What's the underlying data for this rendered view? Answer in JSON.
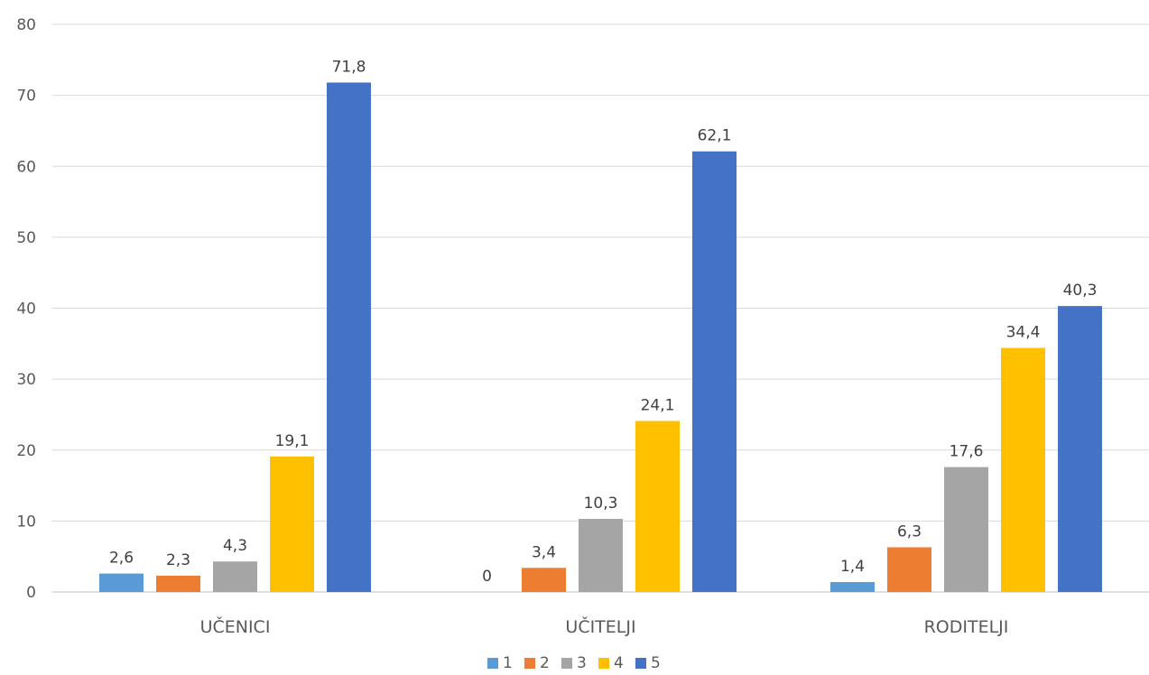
{
  "chart_data": {
    "type": "bar",
    "title": "",
    "xlabel": "",
    "ylabel": "",
    "categories": [
      "UČENICI",
      "UČITELJI",
      "RODITELJI"
    ],
    "ylim": [
      0,
      80
    ],
    "yticks": [
      "0",
      "10",
      "20",
      "30",
      "40",
      "50",
      "60",
      "70",
      "80"
    ],
    "grid": true,
    "legend_position": "bottom",
    "series": [
      {
        "name": "1",
        "color": "#5b9bd5",
        "values": [
          2.6,
          0,
          1.4
        ],
        "labels": [
          "2,6",
          "0",
          "1,4"
        ]
      },
      {
        "name": "2",
        "color": "#ed7d31",
        "values": [
          2.3,
          3.4,
          6.3
        ],
        "labels": [
          "2,3",
          "3,4",
          "6,3"
        ]
      },
      {
        "name": "3",
        "color": "#a5a5a5",
        "values": [
          4.3,
          10.3,
          17.6
        ],
        "labels": [
          "4,3",
          "10,3",
          "17,6"
        ]
      },
      {
        "name": "4",
        "color": "#ffc000",
        "values": [
          19.1,
          24.1,
          34.4
        ],
        "labels": [
          "19,1",
          "24,1",
          "34,4"
        ]
      },
      {
        "name": "5",
        "color": "#4472c4",
        "values": [
          71.8,
          62.1,
          40.3
        ],
        "labels": [
          "71,8",
          "62,1",
          "40,3"
        ]
      }
    ]
  }
}
